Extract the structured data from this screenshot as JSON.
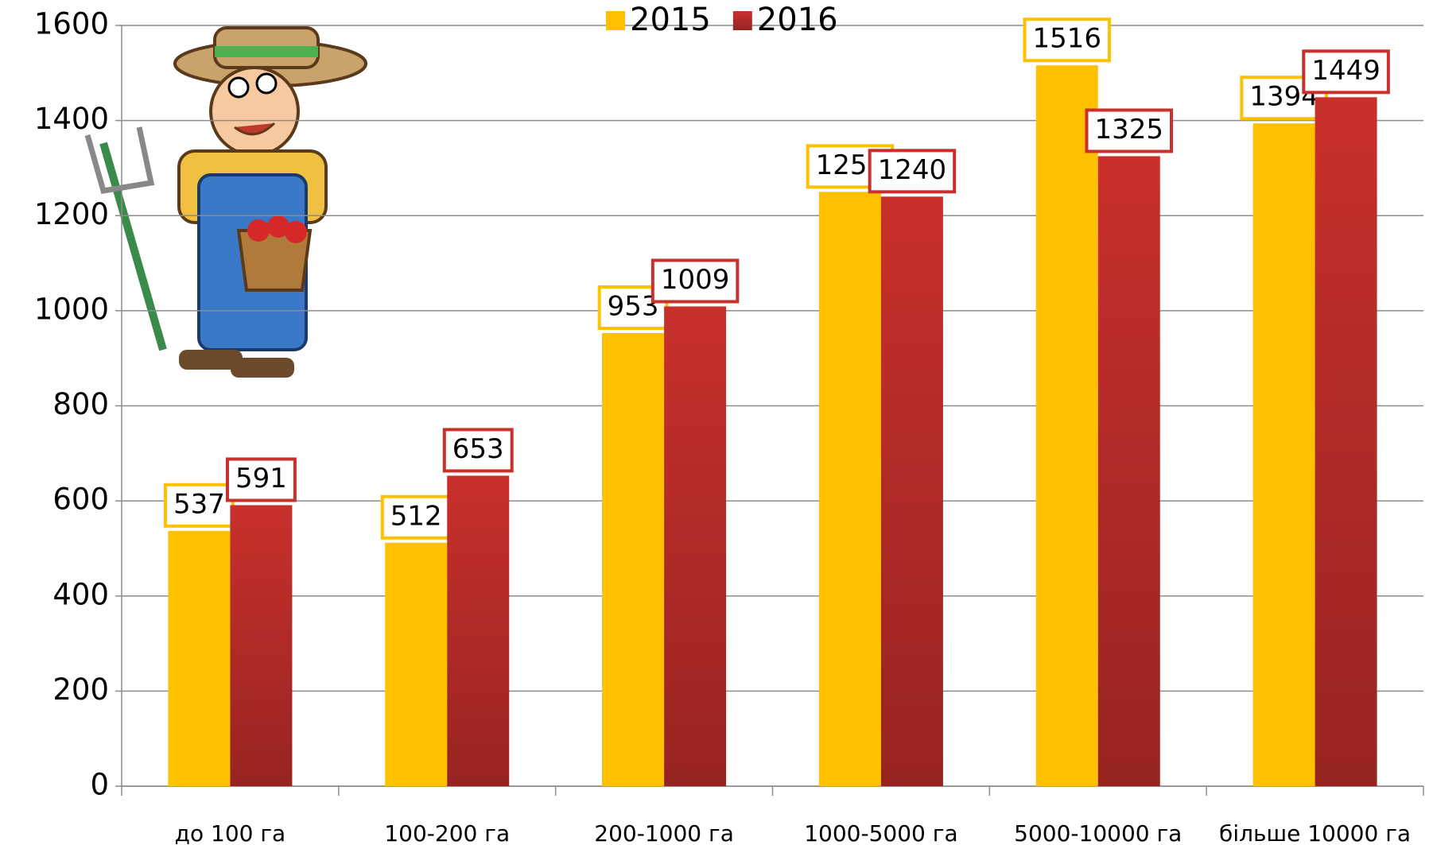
{
  "chart_data": {
    "type": "bar",
    "categories": [
      "до 100 га",
      "100-200 га",
      "200-1000 га",
      "1000-5000 га",
      "5000-10000 га",
      "більше 10000 га"
    ],
    "series": [
      {
        "name": "2015",
        "color": "#ffc000",
        "values": [
          537,
          512,
          953,
          1250,
          1516,
          1394
        ]
      },
      {
        "name": "2016",
        "color": "#c9302c",
        "values": [
          591,
          653,
          1009,
          1240,
          1325,
          1449
        ]
      }
    ],
    "ylim": [
      0,
      1600
    ],
    "yticks": [
      0,
      200,
      400,
      600,
      800,
      1000,
      1200,
      1400,
      1600
    ],
    "grid": true,
    "legend": "top"
  }
}
